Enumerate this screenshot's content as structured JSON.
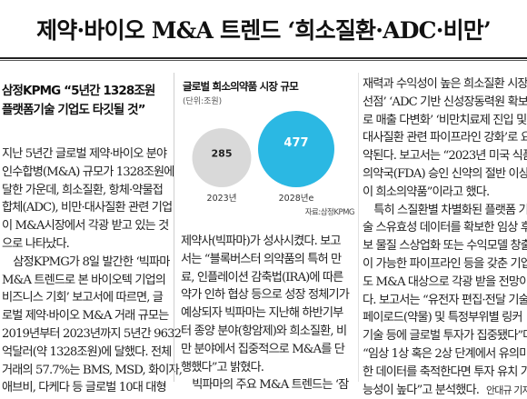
{
  "headline": "제약·바이오 M&A 트렌드 ‘희소질환·ADC·비만’",
  "subhead": [
    "삼정KPMG “5년간 1328조원",
    "플랫폼기술 기업도 타깃될 것”"
  ],
  "col1": [
    "지난 5년간 글로벌 제약·바이오 분야",
    "인수합병(M&A) 규모가 1328조원에",
    "달한 가운데, 희소질환, 항체·약물접",
    "합체(ADC), 비만·대사질환 관련 기업",
    "이 M&A시장에서 각광 받고 있는 것",
    "으로 나타났다.",
    "　삼정KPMG가 8일 발간한 ‘빅파마",
    "M&A 트렌드로 본 바이오텍 기업의",
    "비즈니스 기회’ 보고서에 따르면, 글",
    "로벌 제약·바이오 M&A 거래 규모는",
    "2019년부터 2023년까지 5년간 9632",
    "억달러(약 1328조원)에 달했다. 전체",
    "거래의 57.7%는 BMS, MSD, 화이자,",
    "애브비, 다케다 등 글로벌 10대 대형"
  ],
  "col2": [
    "제약사(빅파마)가 성사시켰다. 보고",
    "서는 “블록버스터 의약품의 특허 만",
    "료, 인플레이션 감축법(IRA)에 따른",
    "약가 인하 협상 등으로 성장 정체기가",
    "예상되자 빅파마는 지난해 하반기부",
    "터 종양 분야(항암제)와 희소질환, 비",
    "만 분야에서 집중적으로 M&A를 단",
    "행했다”고 밝혔다.",
    "　빅파마의 주요 M&A 트렌드는 ‘잠"
  ],
  "col3": [
    "재력과 수익성이 높은 희소질환 시장",
    "선점’ ‘ADC 기반 신성장동력원 확보",
    "로 매출 다변화’ ‘비만치료제 진입 및",
    "대사질환 관련 파이프라인 강화’로 요",
    "약된다. 보고서는 “2023년 미국 식품",
    "의약국(FDA) 승인 신약의 절반 이상",
    "이 희소의약품”이라고 했다.",
    "　특히 스질환별 차별화된 플랫폼 기",
    "술 스유효성 데이터를 확보한 임상 후",
    "보 물질 스상업화 또는 수익모델 창출",
    "이 가능한 파이프라인 등을 갖춘 기업",
    "도 M&A 대상으로 각광 받을 전망이",
    "다. 보고서는 “유전자 편집·전달 기술,",
    "페이로드(약물) 및 특정부위별 링커",
    "기술 등에 글로벌 투자가 집중됐다”며",
    "“임상 1상 혹은 2상 단계에서 유의미",
    "한 데이터를 축적한다면 투자 유치 가"
  ],
  "col3_last": "능성이 높다”고 분석했다.",
  "byline": "안대규 기자",
  "chart": {
    "title": "글로벌 희소의약품 시장 규모",
    "unit": "(단위:조원)",
    "source": "자료:삼정KPMG",
    "accent_color": "#2bb8e3",
    "base_color": "#d9d9d9"
  },
  "chart_data": {
    "type": "bubble",
    "title": "글로벌 희소의약품 시장 규모",
    "unit": "조원",
    "categories": [
      "2023년",
      "2028년e"
    ],
    "values": [
      285,
      477
    ]
  }
}
